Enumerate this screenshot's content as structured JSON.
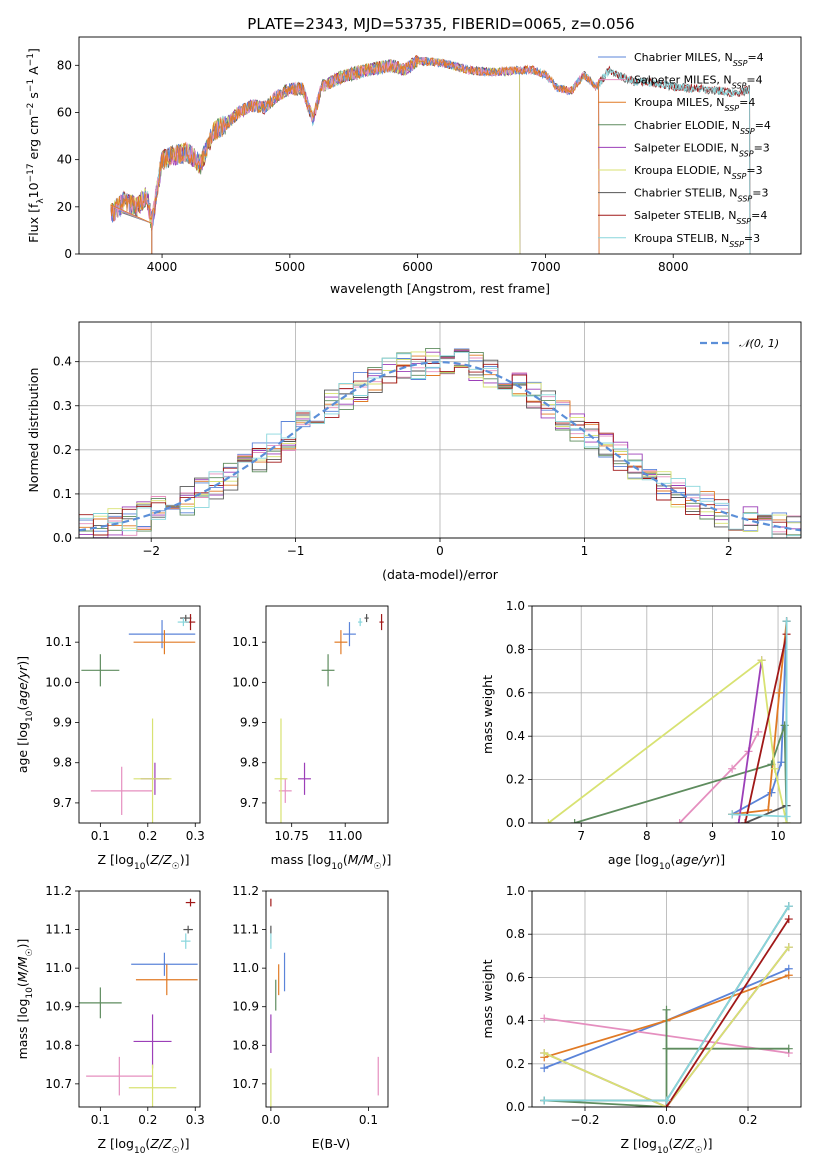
{
  "figure": {
    "title": "PLATE=2343, MJD=53735, FIBERID=0065, z=0.056"
  },
  "colors": {
    "Chabrier MILES": "#5b84d9",
    "Salpeter MILES": "#e58fbf",
    "Kroupa MILES": "#e07a25",
    "Chabrier ELODIE": "#5e8c5e",
    "Salpeter ELODIE": "#9c3fb8",
    "Kroupa ELODIE": "#d8e272",
    "Chabrier STELIB": "#555555",
    "Salpeter STELIB": "#a01818",
    "Kroupa STELIB": "#88d6dc",
    "normal": "#5b8fd8",
    "grid": "#b0b0b0"
  },
  "chart_data": [
    {
      "id": "spectrum",
      "type": "line",
      "title": "PLATE=2343, MJD=53735, FIBERID=0065, z=0.056",
      "xlabel": "wavelength [Angstrom, rest frame]",
      "ylabel": "Flux [f_λ10^-17 erg cm^-2 s^-1 A^-1]",
      "xlim": [
        3350,
        9000
      ],
      "ylim": [
        0,
        92
      ],
      "xticks": [
        4000,
        5000,
        6000,
        7000,
        8000
      ],
      "yticks": [
        0,
        20,
        40,
        60,
        80
      ],
      "grid": false,
      "legend_placement": "upper-right",
      "legend": [
        {
          "label": "Chabrier MILES",
          "nssp": "4"
        },
        {
          "label": "Salpeter MILES",
          "nssp": "4"
        },
        {
          "label": "Kroupa MILES",
          "nssp": "4"
        },
        {
          "label": "Chabrier ELODIE",
          "nssp": "4"
        },
        {
          "label": "Salpeter ELODIE",
          "nssp": "3"
        },
        {
          "label": "Kroupa ELODIE",
          "nssp": "3"
        },
        {
          "label": "Chabrier STELIB",
          "nssp": "3"
        },
        {
          "label": "Salpeter STELIB",
          "nssp": "4"
        },
        {
          "label": "Kroupa STELIB",
          "nssp": "3"
        }
      ],
      "continuum": [
        [
          3600,
          17
        ],
        [
          3700,
          22
        ],
        [
          3800,
          20
        ],
        [
          3880,
          25
        ],
        [
          3920,
          13
        ],
        [
          3960,
          27
        ],
        [
          4000,
          40
        ],
        [
          4100,
          42
        ],
        [
          4200,
          43
        ],
        [
          4300,
          38
        ],
        [
          4400,
          52
        ],
        [
          4500,
          55
        ],
        [
          4600,
          60
        ],
        [
          4700,
          63
        ],
        [
          4800,
          62
        ],
        [
          4900,
          67
        ],
        [
          5000,
          70
        ],
        [
          5100,
          70
        ],
        [
          5180,
          57
        ],
        [
          5250,
          71
        ],
        [
          5400,
          75
        ],
        [
          5600,
          78
        ],
        [
          5800,
          80
        ],
        [
          5900,
          78
        ],
        [
          6000,
          82
        ],
        [
          6200,
          81
        ],
        [
          6400,
          78
        ],
        [
          6600,
          77
        ],
        [
          6800,
          78
        ],
        [
          6900,
          78
        ],
        [
          7000,
          76
        ],
        [
          7100,
          70
        ],
        [
          7200,
          69
        ],
        [
          7300,
          76
        ],
        [
          7400,
          71
        ],
        [
          7500,
          78
        ],
        [
          7600,
          75
        ],
        [
          7700,
          73
        ],
        [
          7800,
          73
        ],
        [
          8000,
          71
        ],
        [
          8200,
          70
        ],
        [
          8400,
          69
        ],
        [
          8500,
          68
        ],
        [
          8600,
          70
        ]
      ],
      "wavelength_range": {
        "Chabrier MILES": [
          3600,
          7420
        ],
        "Salpeter MILES": [
          3600,
          7420
        ],
        "Kroupa MILES": [
          3600,
          7420
        ],
        "Chabrier ELODIE": [
          3600,
          6800
        ],
        "Salpeter ELODIE": [
          3600,
          6800
        ],
        "Kroupa ELODIE": [
          3600,
          6800
        ],
        "Chabrier STELIB": [
          3600,
          8600
        ],
        "Salpeter STELIB": [
          3600,
          8600
        ],
        "Kroupa STELIB": [
          3600,
          8600
        ]
      }
    },
    {
      "id": "residuals",
      "type": "histogram",
      "xlabel": "(data-model)/error",
      "ylabel": "Normed distribution",
      "xlim": [
        -2.5,
        2.5
      ],
      "ylim": [
        0,
        0.49
      ],
      "xticks": [
        -2,
        -1,
        0,
        1,
        2
      ],
      "yticks": [
        0.0,
        0.1,
        0.2,
        0.3,
        0.4
      ],
      "grid": true,
      "legend_placement": "upper-right",
      "normal_label": "𝒩(0, 1)",
      "bin_width": 0.1
    },
    {
      "id": "age-vs-Z",
      "type": "scatter",
      "xlabel": "Z [log10(Z/Z☉)]",
      "ylabel": "age  [log10(age/yr)]",
      "xlim": [
        0.055,
        0.31
      ],
      "ylim": [
        9.65,
        10.19
      ],
      "xticks": [
        0.1,
        0.2,
        0.3
      ],
      "yticks": [
        9.7,
        9.8,
        9.9,
        10.0,
        10.1
      ],
      "points": [
        {
          "model": "Chabrier MILES",
          "x": 0.23,
          "y": 10.12,
          "xerr": 0.07,
          "yerr": 0.035
        },
        {
          "model": "Salpeter MILES",
          "x": 0.145,
          "y": 9.73,
          "xerr": 0.065,
          "yerr": 0.06
        },
        {
          "model": "Kroupa MILES",
          "x": 0.235,
          "y": 10.1,
          "xerr": 0.065,
          "yerr": 0.03
        },
        {
          "model": "Chabrier ELODIE",
          "x": 0.1,
          "y": 10.03,
          "xerr": 0.04,
          "yerr": 0.04
        },
        {
          "model": "Salpeter ELODIE",
          "x": 0.215,
          "y": 9.76,
          "xerr": 0.03,
          "yerr": 0.04
        },
        {
          "model": "Kroupa ELODIE",
          "x": 0.21,
          "y": 9.76,
          "xerr": 0.04,
          "yerr": 0.15
        },
        {
          "model": "Chabrier STELIB",
          "x": 0.28,
          "y": 10.16,
          "xerr": 0.012,
          "yerr": 0.008
        },
        {
          "model": "Salpeter STELIB",
          "x": 0.29,
          "y": 10.15,
          "xerr": 0.01,
          "yerr": 0.02
        },
        {
          "model": "Kroupa STELIB",
          "x": 0.275,
          "y": 10.15,
          "xerr": 0.012,
          "yerr": 0.01
        }
      ]
    },
    {
      "id": "age-vs-mass",
      "type": "scatter",
      "xlabel": "mass [log10(M/M☉)]",
      "ylabel": "",
      "xlim": [
        10.63,
        11.2
      ],
      "ylim": [
        9.65,
        10.19
      ],
      "xticks": [
        10.75,
        11.0
      ],
      "yticks": [
        9.7,
        9.8,
        9.9,
        10.0,
        10.1
      ],
      "points": [
        {
          "model": "Chabrier MILES",
          "x": 11.02,
          "y": 10.12,
          "xerr": 0.03,
          "yerr": 0.03
        },
        {
          "model": "Salpeter MILES",
          "x": 10.72,
          "y": 9.73,
          "xerr": 0.03,
          "yerr": 0.03
        },
        {
          "model": "Kroupa MILES",
          "x": 10.98,
          "y": 10.1,
          "xerr": 0.03,
          "yerr": 0.03
        },
        {
          "model": "Chabrier ELODIE",
          "x": 10.92,
          "y": 10.03,
          "xerr": 0.03,
          "yerr": 0.04
        },
        {
          "model": "Salpeter ELODIE",
          "x": 10.81,
          "y": 9.76,
          "xerr": 0.03,
          "yerr": 0.04
        },
        {
          "model": "Kroupa ELODIE",
          "x": 10.7,
          "y": 9.76,
          "xerr": 0.03,
          "yerr": 0.15
        },
        {
          "model": "Chabrier STELIB",
          "x": 11.1,
          "y": 10.16,
          "xerr": 0.01,
          "yerr": 0.01
        },
        {
          "model": "Salpeter STELIB",
          "x": 11.17,
          "y": 10.15,
          "xerr": 0.01,
          "yerr": 0.02
        },
        {
          "model": "Kroupa STELIB",
          "x": 11.07,
          "y": 10.15,
          "xerr": 0.01,
          "yerr": 0.01
        }
      ]
    },
    {
      "id": "weight-vs-age",
      "type": "line",
      "xlabel": "age  [log10(age/yr)]",
      "ylabel": "mass weight",
      "xlim": [
        6.25,
        10.35
      ],
      "ylim": [
        0,
        1.0
      ],
      "xticks": [
        7,
        8,
        9,
        10
      ],
      "yticks": [
        0.0,
        0.2,
        0.4,
        0.6,
        0.8,
        1.0
      ],
      "grid": true,
      "series": [
        {
          "model": "Chabrier MILES",
          "points": [
            [
              9.3,
              0.04
            ],
            [
              9.9,
              0.14
            ],
            [
              10.05,
              0.28
            ],
            [
              10.13,
              0.93
            ]
          ]
        },
        {
          "model": "Salpeter MILES",
          "points": [
            [
              8.5,
              0.0
            ],
            [
              9.3,
              0.25
            ],
            [
              9.55,
              0.33
            ],
            [
              9.7,
              0.42
            ]
          ]
        },
        {
          "model": "Kroupa MILES",
          "points": [
            [
              9.3,
              0.04
            ],
            [
              9.85,
              0.06
            ],
            [
              10.02,
              0.6
            ],
            [
              10.13,
              0.93
            ]
          ]
        },
        {
          "model": "Chabrier ELODIE",
          "points": [
            [
              6.9,
              0.0
            ],
            [
              9.9,
              0.27
            ],
            [
              10.1,
              0.45
            ],
            [
              10.13,
              0.0
            ]
          ]
        },
        {
          "model": "Salpeter ELODIE",
          "points": [
            [
              9.4,
              0.0
            ],
            [
              9.75,
              0.75
            ]
          ]
        },
        {
          "model": "Kroupa ELODIE",
          "points": [
            [
              6.5,
              0.0
            ],
            [
              9.75,
              0.75
            ],
            [
              9.95,
              0.25
            ],
            [
              10.13,
              0.0
            ]
          ]
        },
        {
          "model": "Chabrier STELIB",
          "points": [
            [
              9.5,
              0.0
            ],
            [
              10.13,
              0.08
            ],
            [
              10.13,
              0.93
            ]
          ]
        },
        {
          "model": "Salpeter STELIB",
          "points": [
            [
              9.5,
              0.0
            ],
            [
              10.13,
              0.87
            ]
          ]
        },
        {
          "model": "Kroupa STELIB",
          "points": [
            [
              9.3,
              0.04
            ],
            [
              10.13,
              0.03
            ],
            [
              10.13,
              0.93
            ]
          ]
        }
      ]
    },
    {
      "id": "mass-vs-Z",
      "type": "scatter",
      "xlabel": "Z [log10(Z/Z☉)]",
      "ylabel": "mass [log10(M/M☉)]",
      "xlim": [
        0.055,
        0.31
      ],
      "ylim": [
        10.64,
        11.2
      ],
      "xticks": [
        0.1,
        0.2,
        0.3
      ],
      "yticks": [
        10.7,
        10.8,
        10.9,
        11.0,
        11.1,
        11.2
      ],
      "points": [
        {
          "model": "Chabrier MILES",
          "x": 0.235,
          "y": 11.01,
          "xerr": 0.07,
          "yerr": 0.03
        },
        {
          "model": "Salpeter MILES",
          "x": 0.14,
          "y": 10.72,
          "xerr": 0.07,
          "yerr": 0.05
        },
        {
          "model": "Kroupa MILES",
          "x": 0.24,
          "y": 10.97,
          "xerr": 0.065,
          "yerr": 0.04
        },
        {
          "model": "Chabrier ELODIE",
          "x": 0.1,
          "y": 10.91,
          "xerr": 0.045,
          "yerr": 0.04
        },
        {
          "model": "Salpeter ELODIE",
          "x": 0.21,
          "y": 10.81,
          "xerr": 0.04,
          "yerr": 0.07
        },
        {
          "model": "Kroupa ELODIE",
          "x": 0.21,
          "y": 10.69,
          "xerr": 0.05,
          "yerr": 0.06
        },
        {
          "model": "Chabrier STELIB",
          "x": 0.285,
          "y": 11.1,
          "xerr": 0.01,
          "yerr": 0.01
        },
        {
          "model": "Salpeter STELIB",
          "x": 0.29,
          "y": 11.17,
          "xerr": 0.01,
          "yerr": 0.01
        },
        {
          "model": "Kroupa STELIB",
          "x": 0.28,
          "y": 11.07,
          "xerr": 0.01,
          "yerr": 0.02
        }
      ]
    },
    {
      "id": "mass-vs-EBV",
      "type": "scatter",
      "xlabel": "E(B-V)",
      "ylabel": "",
      "xlim": [
        -0.005,
        0.12
      ],
      "ylim": [
        10.64,
        11.2
      ],
      "xticks": [
        0.0,
        0.1
      ],
      "yticks": [
        10.7,
        10.8,
        10.9,
        11.0,
        11.1,
        11.2
      ],
      "points": [
        {
          "model": "Chabrier MILES",
          "x": 0.014,
          "y": 10.99,
          "xerr": 0.0,
          "yerr": 0.05
        },
        {
          "model": "Salpeter MILES",
          "x": 0.11,
          "y": 10.72,
          "xerr": 0.0,
          "yerr": 0.05
        },
        {
          "model": "Kroupa MILES",
          "x": 0.008,
          "y": 10.97,
          "xerr": 0.0,
          "yerr": 0.04
        },
        {
          "model": "Chabrier ELODIE",
          "x": 0.005,
          "y": 10.93,
          "xerr": 0.0,
          "yerr": 0.04
        },
        {
          "model": "Salpeter ELODIE",
          "x": 0.0,
          "y": 10.83,
          "xerr": 0.0,
          "yerr": 0.05
        },
        {
          "model": "Kroupa ELODIE",
          "x": 0.0,
          "y": 10.69,
          "xerr": 0.0,
          "yerr": 0.05
        },
        {
          "model": "Chabrier STELIB",
          "x": 0.0,
          "y": 11.1,
          "xerr": 0.0,
          "yerr": 0.01
        },
        {
          "model": "Salpeter STELIB",
          "x": 0.0,
          "y": 11.17,
          "xerr": 0.0,
          "yerr": 0.01
        },
        {
          "model": "Kroupa STELIB",
          "x": 0.0,
          "y": 11.07,
          "xerr": 0.0,
          "yerr": 0.02
        }
      ]
    },
    {
      "id": "weight-vs-Z",
      "type": "line",
      "xlabel": "Z [log10(Z/Z☉)]",
      "ylabel": "mass weight",
      "xlim": [
        -0.33,
        0.33
      ],
      "ylim": [
        0,
        1.0
      ],
      "xticks": [
        -0.2,
        0.0,
        0.2
      ],
      "yticks": [
        0.0,
        0.2,
        0.4,
        0.6,
        0.8,
        1.0
      ],
      "grid": true,
      "series": [
        {
          "model": "Chabrier MILES",
          "points": [
            [
              -0.3,
              0.18
            ],
            [
              0.0,
              0.4
            ],
            [
              0.3,
              0.64
            ]
          ]
        },
        {
          "model": "Salpeter MILES",
          "points": [
            [
              -0.3,
              0.41
            ],
            [
              0.3,
              0.25
            ]
          ]
        },
        {
          "model": "Kroupa MILES",
          "points": [
            [
              -0.3,
              0.23
            ],
            [
              0.0,
              0.4
            ],
            [
              0.3,
              0.61
            ]
          ]
        },
        {
          "model": "Chabrier ELODIE",
          "points": [
            [
              -0.3,
              0.03
            ],
            [
              0.0,
              0.0
            ],
            [
              0.0,
              0.45
            ],
            [
              0.0,
              0.27
            ],
            [
              0.3,
              0.27
            ]
          ]
        },
        {
          "model": "Salpeter ELODIE",
          "points": [
            [
              -0.3,
              0.25
            ],
            [
              0.0,
              0.0
            ],
            [
              0.3,
              0.74
            ]
          ]
        },
        {
          "model": "Kroupa ELODIE",
          "points": [
            [
              -0.3,
              0.25
            ],
            [
              0.0,
              0.0
            ],
            [
              0.3,
              0.74
            ]
          ]
        },
        {
          "model": "Chabrier STELIB",
          "points": [
            [
              -0.3,
              0.03
            ],
            [
              0.0,
              0.03
            ],
            [
              0.3,
              0.93
            ]
          ]
        },
        {
          "model": "Salpeter STELIB",
          "points": [
            [
              0.0,
              0.0
            ],
            [
              0.3,
              0.87
            ]
          ]
        },
        {
          "model": "Kroupa STELIB",
          "points": [
            [
              -0.3,
              0.03
            ],
            [
              0.0,
              0.03
            ],
            [
              0.3,
              0.93
            ]
          ]
        }
      ]
    }
  ]
}
